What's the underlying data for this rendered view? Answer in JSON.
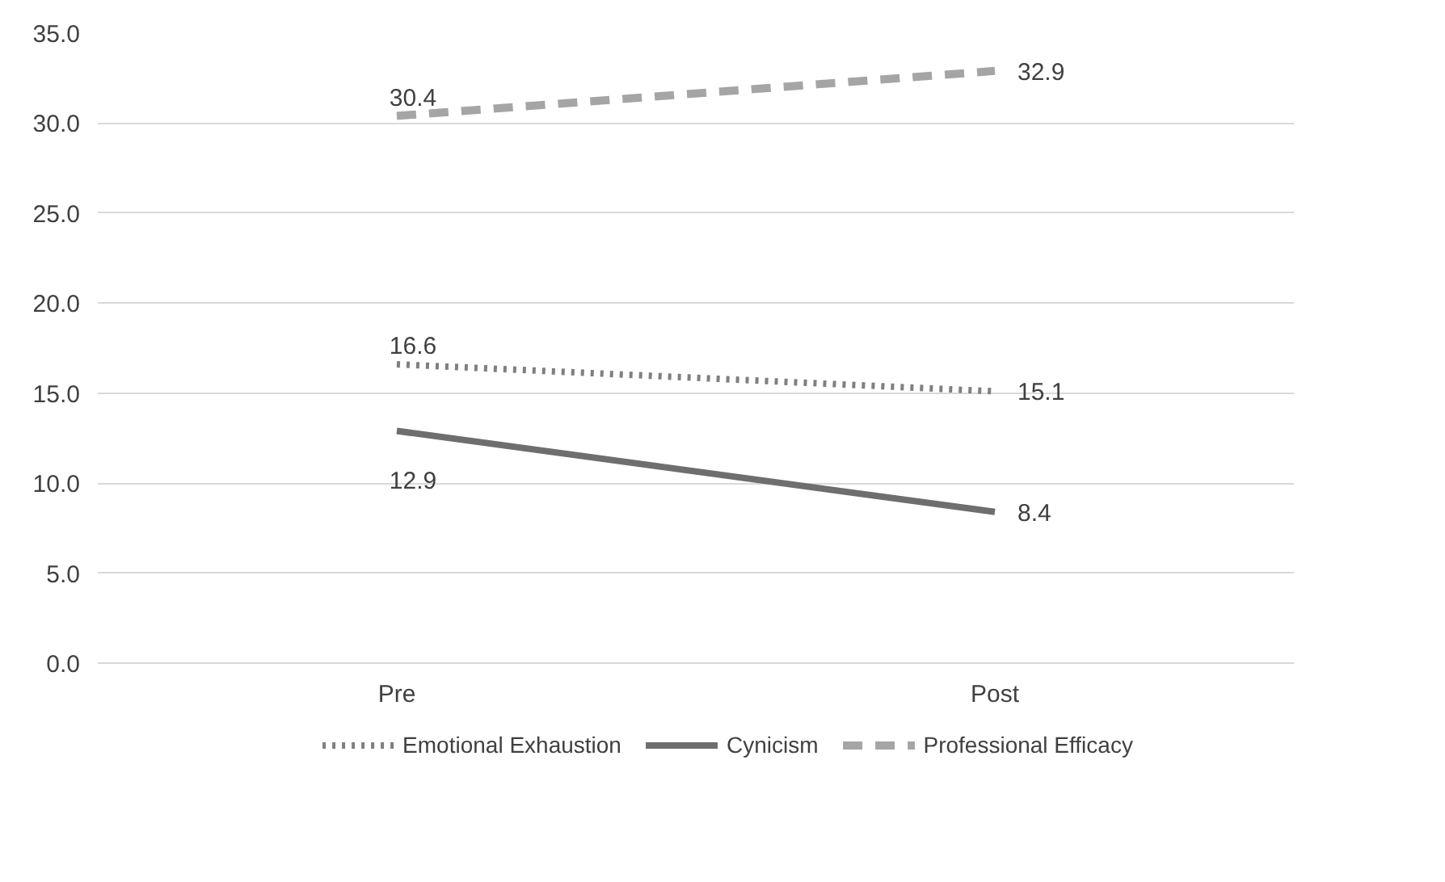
{
  "chart_data": {
    "type": "line",
    "categories": [
      "Pre",
      "Post"
    ],
    "series": [
      {
        "name": "Emotional Exhaustion",
        "color": "#7f7f7f",
        "values": [
          16.6,
          15.1
        ],
        "line_style": "dotted"
      },
      {
        "name": "Cynicism",
        "color": "#6e6e6e",
        "values": [
          12.9,
          8.4
        ],
        "line_style": "solid"
      },
      {
        "name": "Professional Efficacy",
        "color": "#a5a5a5",
        "values": [
          30.4,
          32.9
        ],
        "line_style": "dashed"
      }
    ],
    "ylim": [
      0,
      35
    ],
    "yticks": [
      {
        "value": 0,
        "label": "0.0"
      },
      {
        "value": 5,
        "label": "5.0"
      },
      {
        "value": 10,
        "label": "10.0"
      },
      {
        "value": 15,
        "label": "15.0"
      },
      {
        "value": 20,
        "label": "20.0"
      },
      {
        "value": 25,
        "label": "25.0"
      },
      {
        "value": 30,
        "label": "30.0"
      },
      {
        "value": 35,
        "label": "35.0"
      }
    ],
    "grid": "y",
    "legend": "bottom",
    "data_labels": true
  }
}
